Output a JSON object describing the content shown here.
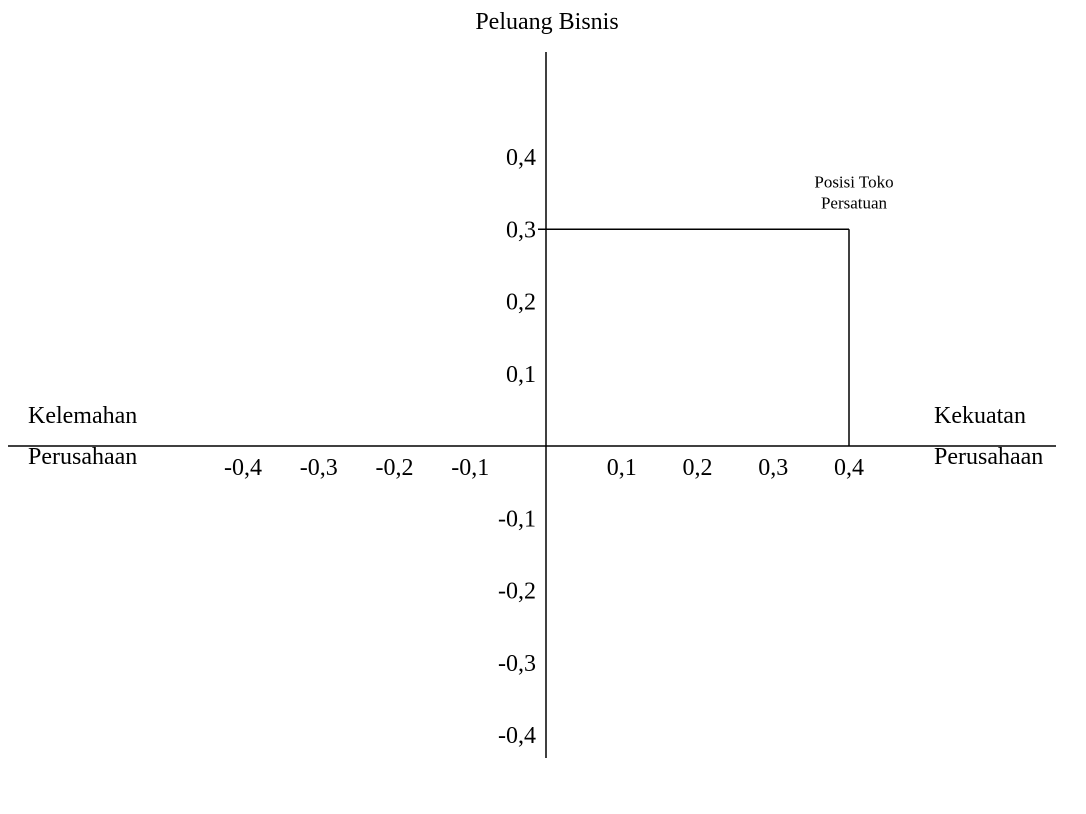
{
  "chart_data": {
    "type": "scatter",
    "title": "",
    "axes": {
      "top_label": "Peluang Bisnis",
      "left_label": [
        "Kelemahan",
        "Perusahaan"
      ],
      "right_label": [
        "Kekuatan",
        "Perusahaan"
      ]
    },
    "x_ticks": [
      "-0,4",
      "-0,3",
      "-0,2",
      "-0,1",
      "0,1",
      "0,2",
      "0,3",
      "0,4"
    ],
    "x_tick_values": [
      -0.4,
      -0.3,
      -0.2,
      -0.1,
      0.1,
      0.2,
      0.3,
      0.4
    ],
    "y_ticks": [
      "0,4",
      "0,3",
      "0,2",
      "0,1",
      "-0,1",
      "-0,2",
      "-0,3",
      "-0,4"
    ],
    "y_tick_values": [
      0.4,
      0.3,
      0.2,
      0.1,
      -0.1,
      -0.2,
      -0.3,
      -0.4
    ],
    "xlim": [
      -0.4,
      0.4
    ],
    "ylim": [
      -0.4,
      0.4
    ],
    "grid": false,
    "points": [
      {
        "label": [
          "Posisi Toko",
          "Persatuan"
        ],
        "x": 0.4,
        "y": 0.3
      }
    ],
    "colors": {
      "line": "#000000",
      "background": "#ffffff"
    }
  }
}
